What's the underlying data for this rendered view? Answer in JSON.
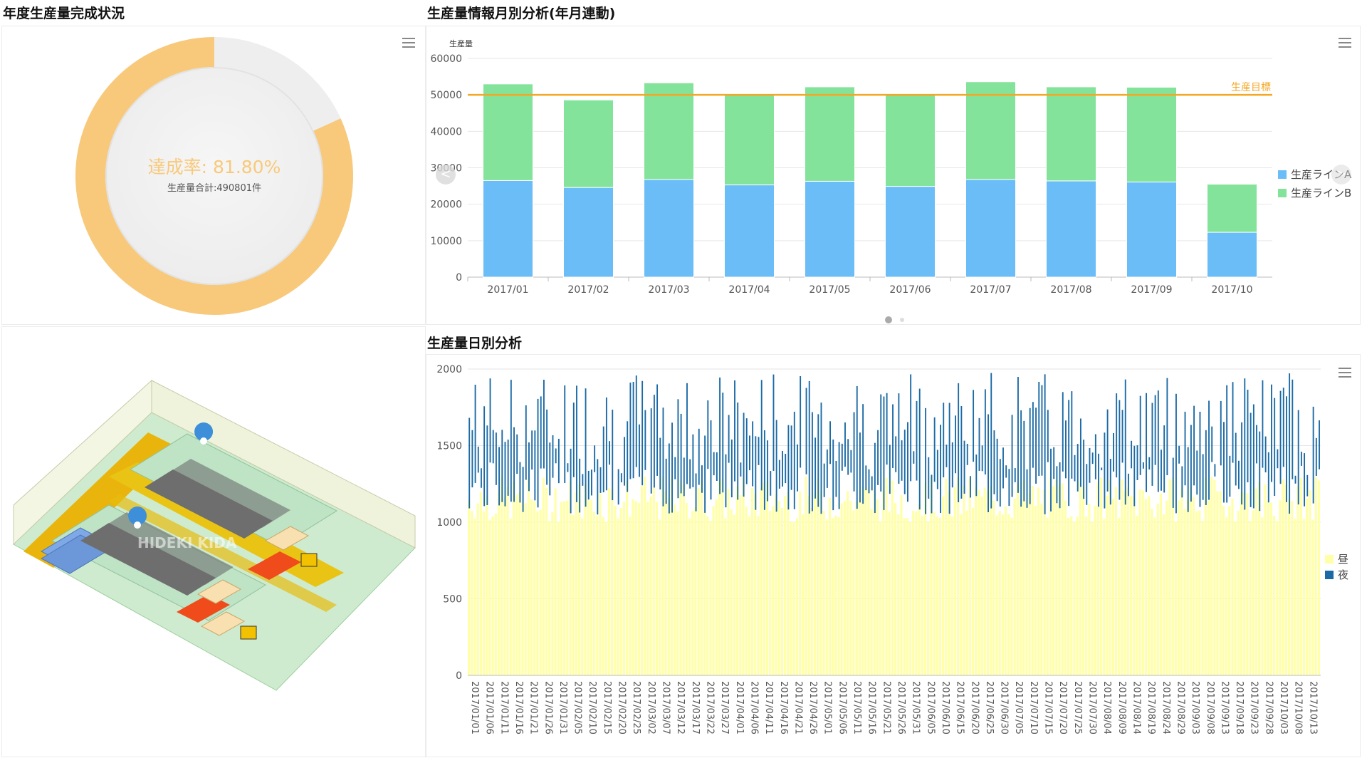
{
  "panels": {
    "completion": {
      "title": "年度生産量完成状況",
      "rate_label": "達成率: 81.80%",
      "total_label": "生産量合計:490801件",
      "rate": 0.818,
      "colors": {
        "filled": "#F8C97A",
        "remaining": "#EEEEEE"
      }
    },
    "monthly": {
      "title": "生産量情報月別分析(年月連動)",
      "nav_prev": "<",
      "nav_next": ">",
      "pager": {
        "pages": 2,
        "active": 0
      }
    },
    "daily": {
      "title": "生産量日別分析"
    },
    "factory": {
      "watermark": "HIDEKI KIDA"
    }
  },
  "monthly_chart": {
    "type": "bar",
    "ylabel": "生産量",
    "ylim": [
      0,
      60000
    ],
    "yticks": [
      "0",
      "10000",
      "20000",
      "30000",
      "40000",
      "50000",
      "60000"
    ],
    "categories": [
      "2017/01",
      "2017/02",
      "2017/03",
      "2017/04",
      "2017/05",
      "2017/06",
      "2017/07",
      "2017/08",
      "2017/09",
      "2017/10"
    ],
    "series": [
      {
        "name": "生産ラインA",
        "color": "#6BBDF7",
        "values": [
          26500,
          24600,
          26800,
          25300,
          26300,
          24900,
          26800,
          26400,
          26100,
          12300
        ]
      },
      {
        "name": "生産ラインB",
        "color": "#84E39A",
        "values": [
          26500,
          24000,
          26500,
          24700,
          25900,
          25100,
          26800,
          25800,
          26000,
          13200
        ]
      }
    ],
    "target": {
      "label": "生産目標",
      "value": 50000,
      "color": "#F5A623"
    },
    "legend": "right"
  },
  "daily_chart": {
    "type": "bar",
    "ylim": [
      0,
      2000
    ],
    "yticks": [
      "0",
      "500",
      "1000",
      "1500",
      "2000"
    ],
    "xlabels": [
      "2017/01/01",
      "2017/01/06",
      "2017/01/11",
      "2017/01/16",
      "2017/01/21",
      "2017/01/26",
      "2017/01/31",
      "2017/02/05",
      "2017/02/10",
      "2017/02/15",
      "2017/02/20",
      "2017/02/25",
      "2017/03/02",
      "2017/03/07",
      "2017/03/12",
      "2017/03/17",
      "2017/03/22",
      "2017/03/27",
      "2017/04/01",
      "2017/04/06",
      "2017/04/11",
      "2017/04/16",
      "2017/04/21",
      "2017/04/26",
      "2017/05/01",
      "2017/05/06",
      "2017/05/11",
      "2017/05/16",
      "2017/05/21",
      "2017/05/26",
      "2017/05/31",
      "2017/06/05",
      "2017/06/10",
      "2017/06/15",
      "2017/06/20",
      "2017/06/25",
      "2017/06/30",
      "2017/07/05",
      "2017/07/10",
      "2017/07/15",
      "2017/07/20",
      "2017/07/25",
      "2017/07/30",
      "2017/08/04",
      "2017/08/09",
      "2017/08/14",
      "2017/08/19",
      "2017/08/24",
      "2017/08/29",
      "2017/09/03",
      "2017/09/08",
      "2017/09/13",
      "2017/09/18",
      "2017/09/23",
      "2017/09/28",
      "2017/10/03",
      "2017/10/08",
      "2017/10/13"
    ],
    "series": [
      {
        "name": "昼",
        "color": "#FFFFA8"
      },
      {
        "name": "夜",
        "color": "#1B6AA5"
      }
    ],
    "day_range": [
      1000,
      1300
    ],
    "night_range": [
      1000,
      1980
    ],
    "legend": "right"
  }
}
